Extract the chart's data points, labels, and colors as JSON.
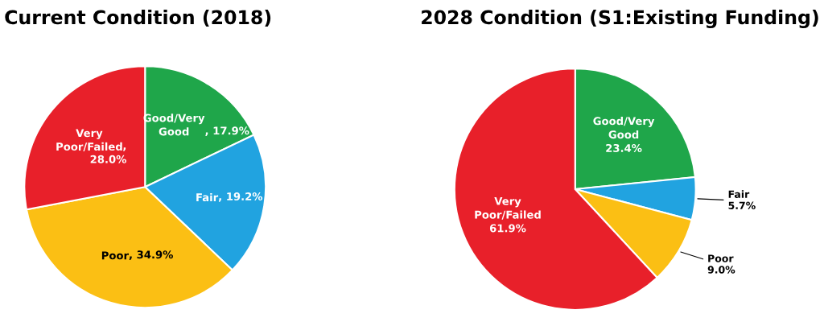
{
  "chart_data": [
    {
      "type": "pie",
      "title": "Current Condition (2018)",
      "categories": [
        "Good/Very\nGood",
        "Fair",
        "Poor",
        "Very\nPoor/Failed"
      ],
      "values": [
        17.9,
        19.2,
        34.9,
        28.0
      ],
      "value_labels": [
        ", 17.9%",
        ", 19.2%",
        ", 34.9%",
        ",\n28.0%"
      ],
      "colors": [
        "#1fa64a",
        "#21a3e0",
        "#fbbf14",
        "#e8202a"
      ]
    },
    {
      "type": "pie",
      "title": "2028 Condition (S1:Existing Funding)",
      "categories": [
        "Good/Very\nGood",
        "Fair",
        "Poor",
        "Very\nPoor/Failed"
      ],
      "values": [
        23.4,
        5.7,
        9.0,
        61.9
      ],
      "value_labels": [
        "23.4%",
        "5.7%",
        "9.0%",
        "61.9%"
      ],
      "colors": [
        "#1fa64a",
        "#21a3e0",
        "#fbbf14",
        "#e8202a"
      ]
    }
  ]
}
